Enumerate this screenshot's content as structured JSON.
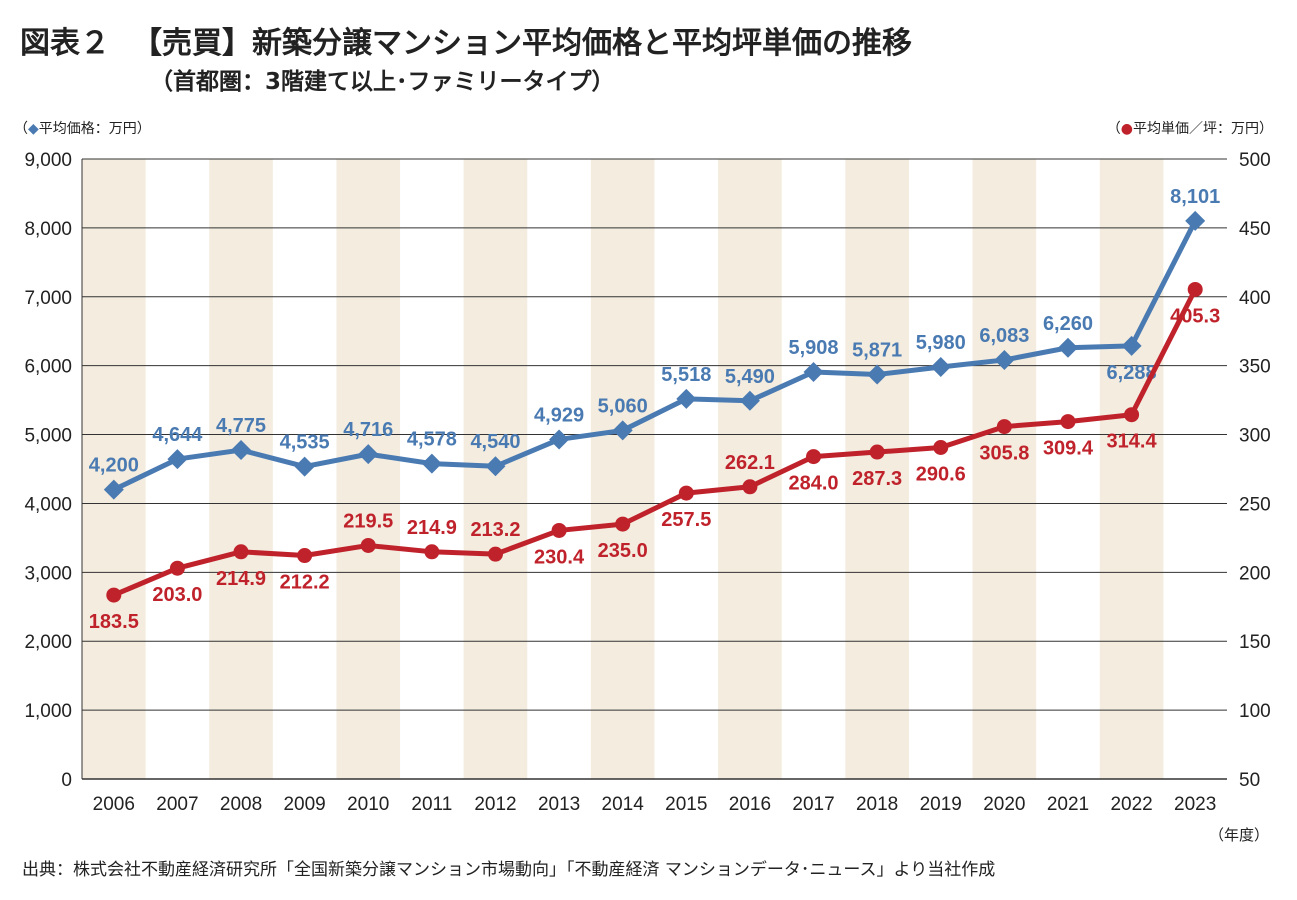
{
  "header": {
    "figure_no": "図表２",
    "title": "【売買】新築分譲マンション平均価格と平均坪単価の推移",
    "subtitle": "（首都圏：3階建て以上･ファミリータイプ）"
  },
  "left_axis_label": {
    "marker": "◆",
    "text": "平均価格：万円"
  },
  "right_axis_label": {
    "marker": "●",
    "text": "平均単価／坪：万円"
  },
  "x_unit_label": "（年度）",
  "source": "出典：株式会社不動産経済研究所「全国新築分譲マンション市場動向」「不動産経済 マンションデータ･ニュース」より当社作成",
  "chart_data": {
    "type": "line",
    "categories": [
      "2006",
      "2007",
      "2008",
      "2009",
      "2010",
      "2011",
      "2012",
      "2013",
      "2014",
      "2015",
      "2016",
      "2017",
      "2018",
      "2019",
      "2020",
      "2021",
      "2022",
      "2023"
    ],
    "left_axis": {
      "ylim": [
        0,
        9000
      ],
      "ticks": [
        0,
        1000,
        2000,
        3000,
        4000,
        5000,
        6000,
        7000,
        8000,
        9000
      ],
      "tick_labels": [
        "0",
        "1,000",
        "2,000",
        "3,000",
        "4,000",
        "5,000",
        "6,000",
        "7,000",
        "8,000",
        "9,000"
      ]
    },
    "right_axis": {
      "ylim": [
        50,
        500
      ],
      "ticks": [
        50,
        100,
        150,
        200,
        250,
        300,
        350,
        400,
        450,
        500
      ],
      "tick_labels": [
        "50",
        "100",
        "150",
        "200",
        "250",
        "300",
        "350",
        "400",
        "450",
        "500"
      ]
    },
    "grid": true,
    "alternating_column_shading": true,
    "series": [
      {
        "name": "平均価格",
        "axis": "left",
        "marker": "diamond",
        "color": "#4a7ab2",
        "values": [
          4200,
          4644,
          4775,
          4535,
          4716,
          4578,
          4540,
          4929,
          5060,
          5518,
          5490,
          5908,
          5871,
          5980,
          6083,
          6260,
          6288,
          8101
        ],
        "labels": [
          "4,200",
          "4,644",
          "4,775",
          "4,535",
          "4,716",
          "4,578",
          "4,540",
          "4,929",
          "5,060",
          "5,518",
          "5,490",
          "5,908",
          "5,871",
          "5,980",
          "6,083",
          "6,260",
          "6,288",
          "8,101"
        ],
        "label_positions": [
          "above",
          "above",
          "above",
          "above",
          "above",
          "above",
          "above",
          "above",
          "above",
          "above",
          "above",
          "above",
          "above",
          "above",
          "above",
          "above",
          "below",
          "above"
        ]
      },
      {
        "name": "平均単価／坪",
        "axis": "right",
        "marker": "circle",
        "color": "#c0222b",
        "values": [
          183.5,
          203.0,
          214.9,
          212.2,
          219.5,
          214.9,
          213.2,
          230.4,
          235.0,
          257.5,
          262.1,
          284.0,
          287.3,
          290.6,
          305.8,
          309.4,
          314.4,
          405.3
        ],
        "labels": [
          "183.5",
          "203.0",
          "214.9",
          "212.2",
          "219.5",
          "214.9",
          "213.2",
          "230.4",
          "235.0",
          "257.5",
          "262.1",
          "284.0",
          "287.3",
          "290.6",
          "305.8",
          "309.4",
          "314.4",
          "405.3"
        ],
        "label_positions": [
          "below",
          "below",
          "below",
          "below",
          "above",
          "above",
          "above",
          "below",
          "below",
          "below",
          "above",
          "below",
          "below",
          "below",
          "below",
          "below",
          "below",
          "below"
        ]
      }
    ],
    "colors": {
      "shade": "#f3ecdf",
      "grid": "#333333"
    }
  }
}
